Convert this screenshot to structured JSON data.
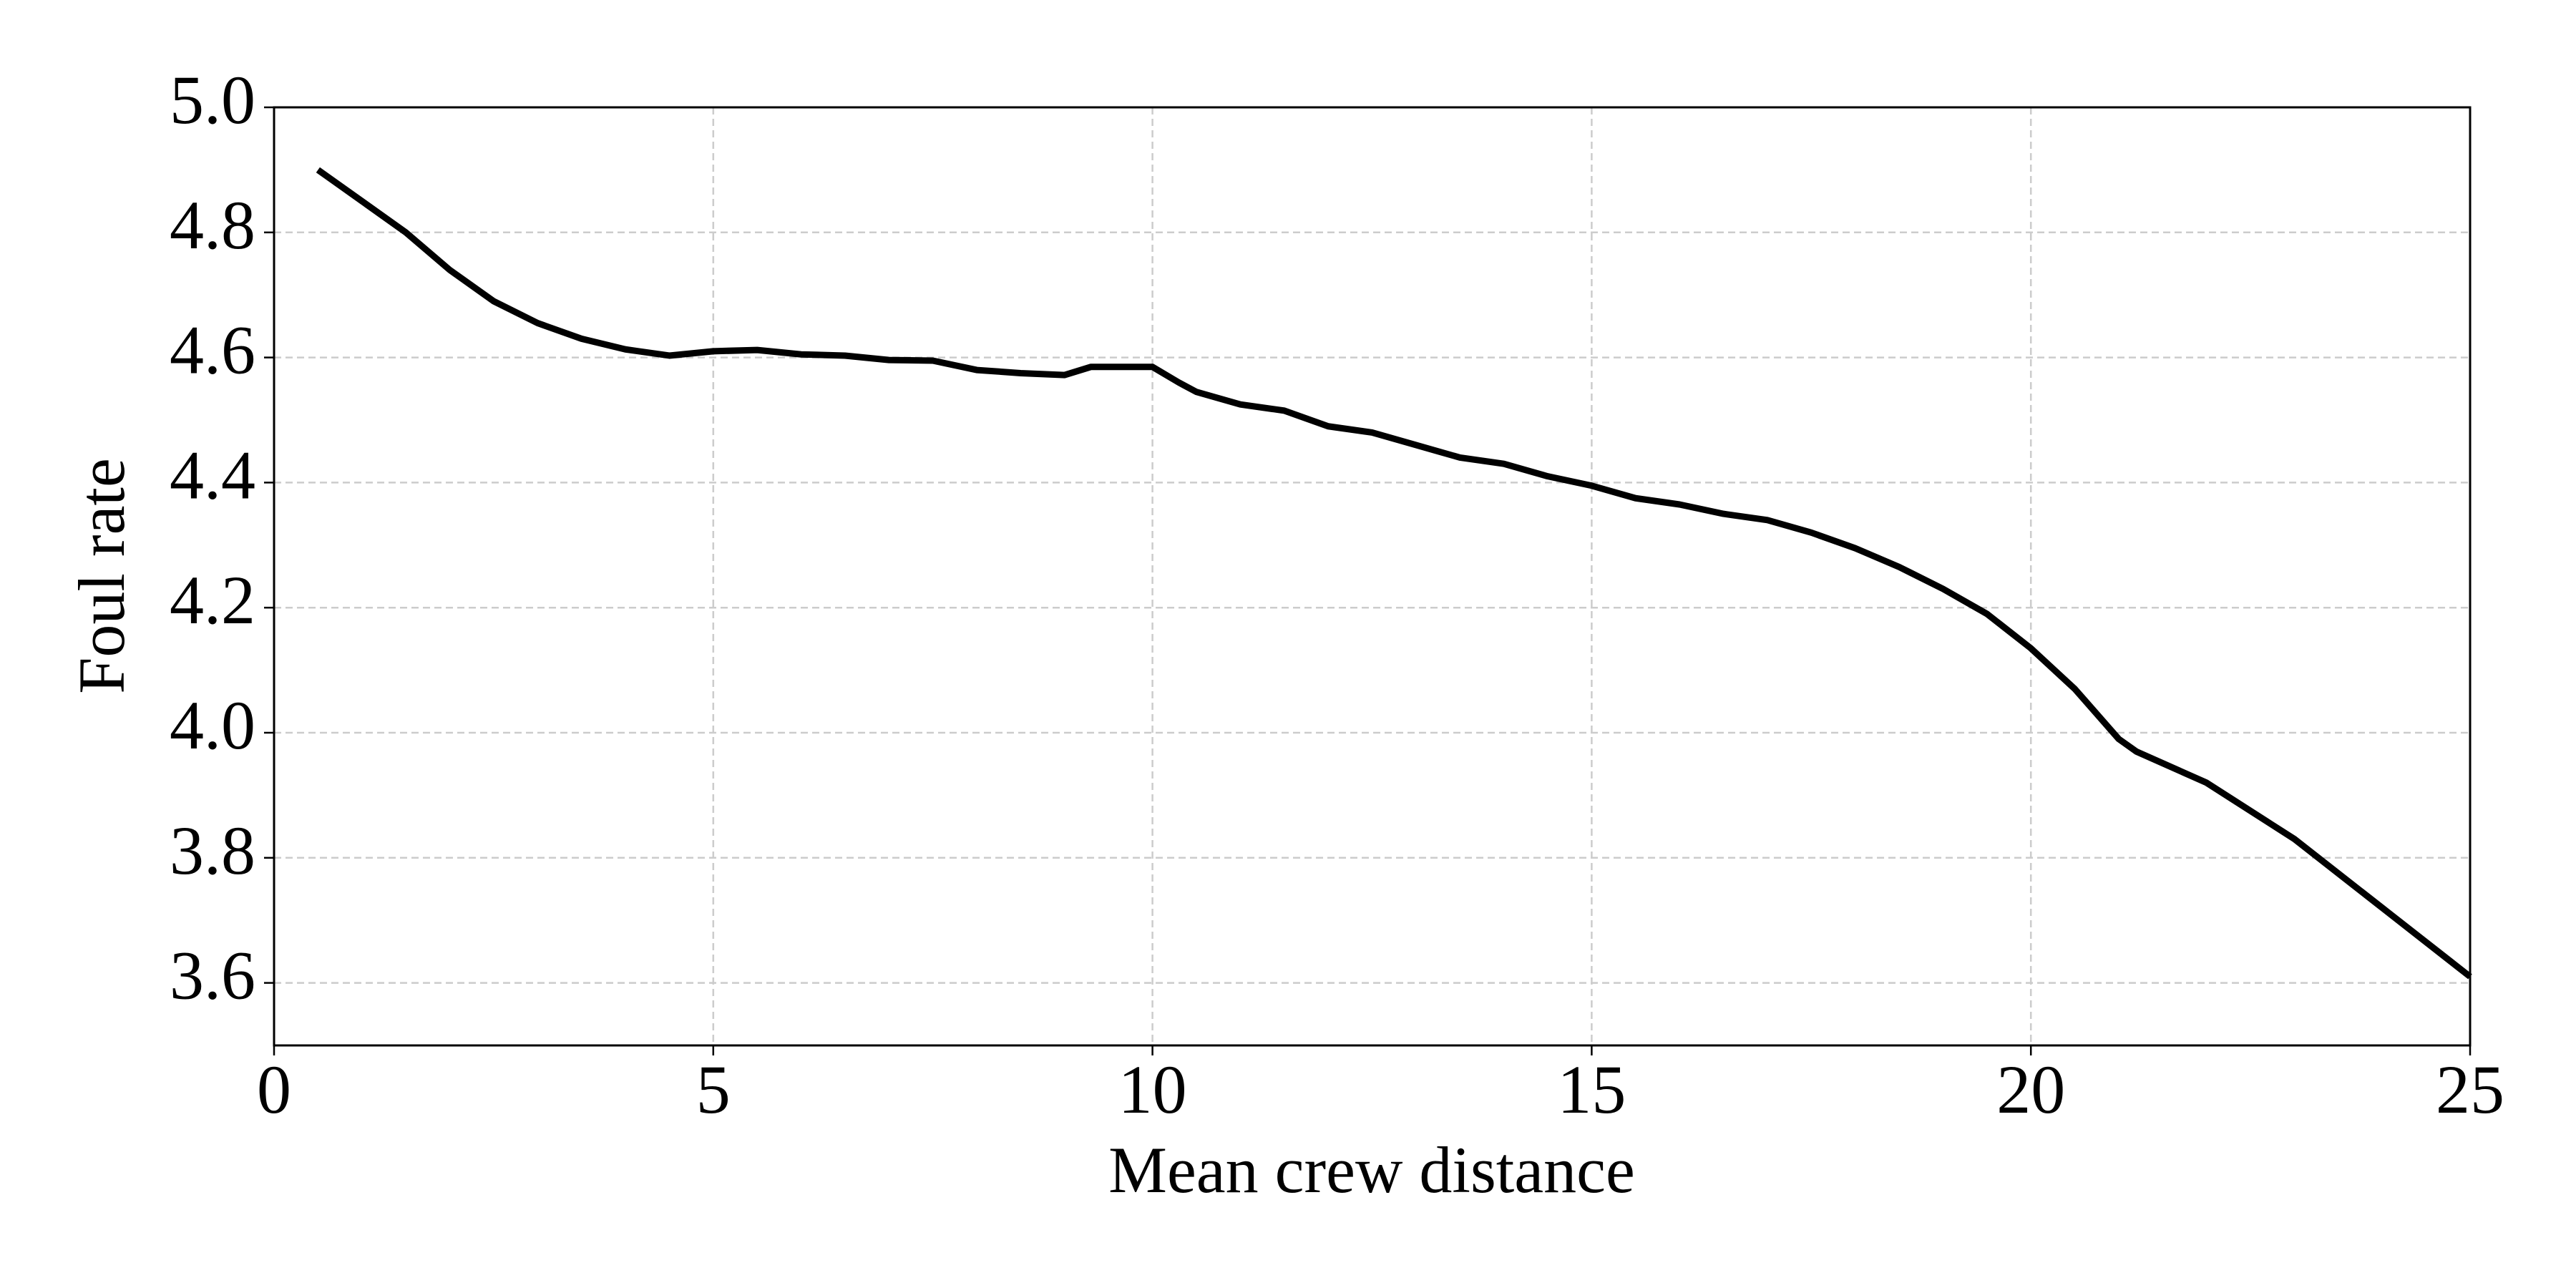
{
  "chart_data": {
    "type": "line",
    "xlabel": "Mean crew distance",
    "ylabel": "Foul rate",
    "x": [
      0.5,
      1,
      1.5,
      2,
      2.5,
      3,
      3.5,
      4,
      4.5,
      5,
      5.5,
      6,
      6.5,
      7,
      7.5,
      8,
      8.5,
      9,
      9.3,
      9.6,
      10,
      10.3,
      10.5,
      11,
      11.5,
      12,
      12.5,
      13,
      13.5,
      14,
      14.5,
      15,
      15.5,
      16,
      16.5,
      17,
      17.5,
      18,
      18.5,
      19,
      19.5,
      20,
      20.5,
      21,
      21.2,
      22,
      23,
      24,
      25
    ],
    "values": [
      4.9,
      4.85,
      4.8,
      4.74,
      4.69,
      4.655,
      4.63,
      4.613,
      4.603,
      4.61,
      4.612,
      4.605,
      4.603,
      4.596,
      4.595,
      4.58,
      4.575,
      4.572,
      4.585,
      4.585,
      4.585,
      4.56,
      4.545,
      4.525,
      4.515,
      4.49,
      4.48,
      4.46,
      4.44,
      4.43,
      4.41,
      4.395,
      4.375,
      4.365,
      4.35,
      4.34,
      4.32,
      4.295,
      4.265,
      4.23,
      4.19,
      4.135,
      4.07,
      3.99,
      3.97,
      3.92,
      3.83,
      3.72,
      3.61
    ],
    "color": "#000000",
    "xlim": [
      0,
      25
    ],
    "xticks": [
      0,
      5,
      10,
      15,
      20,
      25
    ],
    "ylim": [
      3.5,
      5.0
    ],
    "yticks": [
      3.6,
      3.8,
      {
        "value": 4,
        "label": "4.0"
      },
      4.2,
      4.4,
      4.6,
      4.8,
      {
        "value": 5,
        "label": "5.0"
      }
    ],
    "grid": true
  }
}
